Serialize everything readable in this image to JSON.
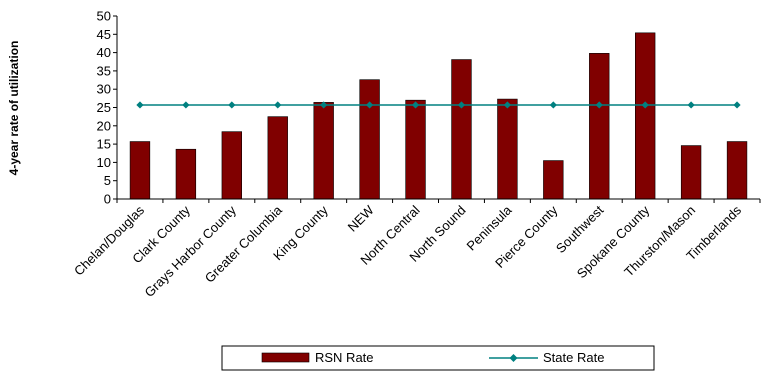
{
  "chart_data": {
    "type": "bar",
    "ylabel": "4-year rate of utilization",
    "xlabel": "",
    "title": "",
    "ylim": [
      0,
      50
    ],
    "ytick_step": 5,
    "grid": false,
    "legend_position": "bottom",
    "categories": [
      "Chelan/Douglas",
      "Clark County",
      "Grays Harbor County",
      "Greater Columbia",
      "King County",
      "NEW",
      "North Central",
      "North Sound",
      "Peninsula",
      "Pierce County",
      "Southwest",
      "Spokane County",
      "Thurston/Mason",
      "Timberlands"
    ],
    "series": [
      {
        "name": "RSN Rate",
        "kind": "bar",
        "color": "#800000",
        "values": [
          15.7,
          13.6,
          18.4,
          22.5,
          26.4,
          32.6,
          27.0,
          38.1,
          27.3,
          10.5,
          39.8,
          45.4,
          14.6,
          15.7
        ]
      },
      {
        "name": "State Rate",
        "kind": "line",
        "color": "#008080",
        "values": [
          25.7,
          25.7,
          25.7,
          25.7,
          25.7,
          25.7,
          25.7,
          25.7,
          25.7,
          25.7,
          25.7,
          25.7,
          25.7,
          25.7
        ]
      }
    ]
  }
}
